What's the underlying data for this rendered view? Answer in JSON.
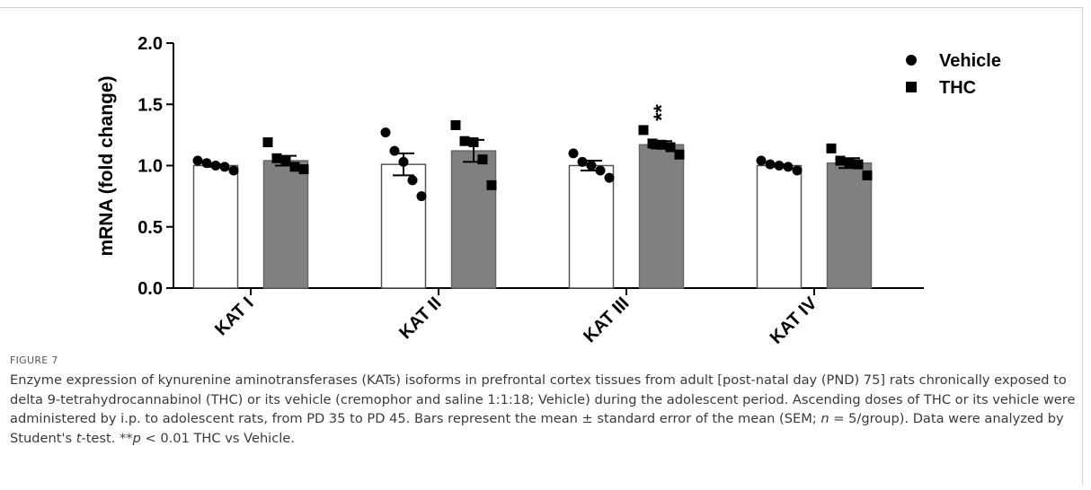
{
  "chart_data": {
    "type": "bar",
    "title": "",
    "xlabel": "",
    "ylabel": "mRNA (fold change)",
    "ylim": [
      0,
      2.0
    ],
    "yticks": [
      "0.0",
      "0.5",
      "1.0",
      "1.5",
      "2.0"
    ],
    "categories": [
      "KAT I",
      "KAT II",
      "KAT III",
      "KAT IV"
    ],
    "legend_position": "top-right",
    "series": [
      {
        "name": "Vehicle",
        "marker": "circle",
        "fill": "#ffffff",
        "values": [
          1.0,
          1.01,
          1.0,
          1.0
        ],
        "sem": [
          0.01,
          0.09,
          0.04,
          0.01
        ],
        "points": [
          [
            1.04,
            1.02,
            1.0,
            0.99,
            0.96
          ],
          [
            1.27,
            1.12,
            1.03,
            0.88,
            0.75
          ],
          [
            1.1,
            1.03,
            1.0,
            0.96,
            0.9
          ],
          [
            1.04,
            1.01,
            1.0,
            0.99,
            0.96
          ]
        ]
      },
      {
        "name": "THC",
        "marker": "square",
        "fill": "#808080",
        "values": [
          1.04,
          1.12,
          1.17,
          1.02
        ],
        "sem": [
          0.04,
          0.09,
          0.03,
          0.04
        ],
        "points": [
          [
            1.19,
            1.06,
            1.04,
            0.99,
            0.97
          ],
          [
            1.33,
            1.2,
            1.19,
            1.05,
            0.84
          ],
          [
            1.29,
            1.18,
            1.17,
            1.15,
            1.09
          ],
          [
            1.14,
            1.04,
            1.02,
            1.01,
            0.92
          ]
        ]
      }
    ],
    "annotations": [
      {
        "text": "**",
        "category": "KAT III",
        "series": "THC"
      }
    ]
  },
  "figure_label": "FIGURE 7",
  "caption": {
    "part1": "Enzyme expression of kynurenine aminotransferases (KATs) isoforms in prefrontal cortex tissues from adult [post-natal day (PND) 75] rats chronically exposed to delta 9-tetrahydrocannabinol (THC) or its vehicle (cremophor and saline 1:1:18; Vehicle) during the adolescent period. Ascending doses of THC or its vehicle were administered by i.p. to adolescent rats, from PD 35 to PD 45. Bars represent the mean ± standard error of the mean (SEM; ",
    "n_symbol": "n",
    "part2": " = 5/group). Data were analyzed by Student's ",
    "t_symbol": "t",
    "part3": "-test. **",
    "p_symbol": "p",
    "part4": " < 0.01 THC vs Vehicle."
  }
}
